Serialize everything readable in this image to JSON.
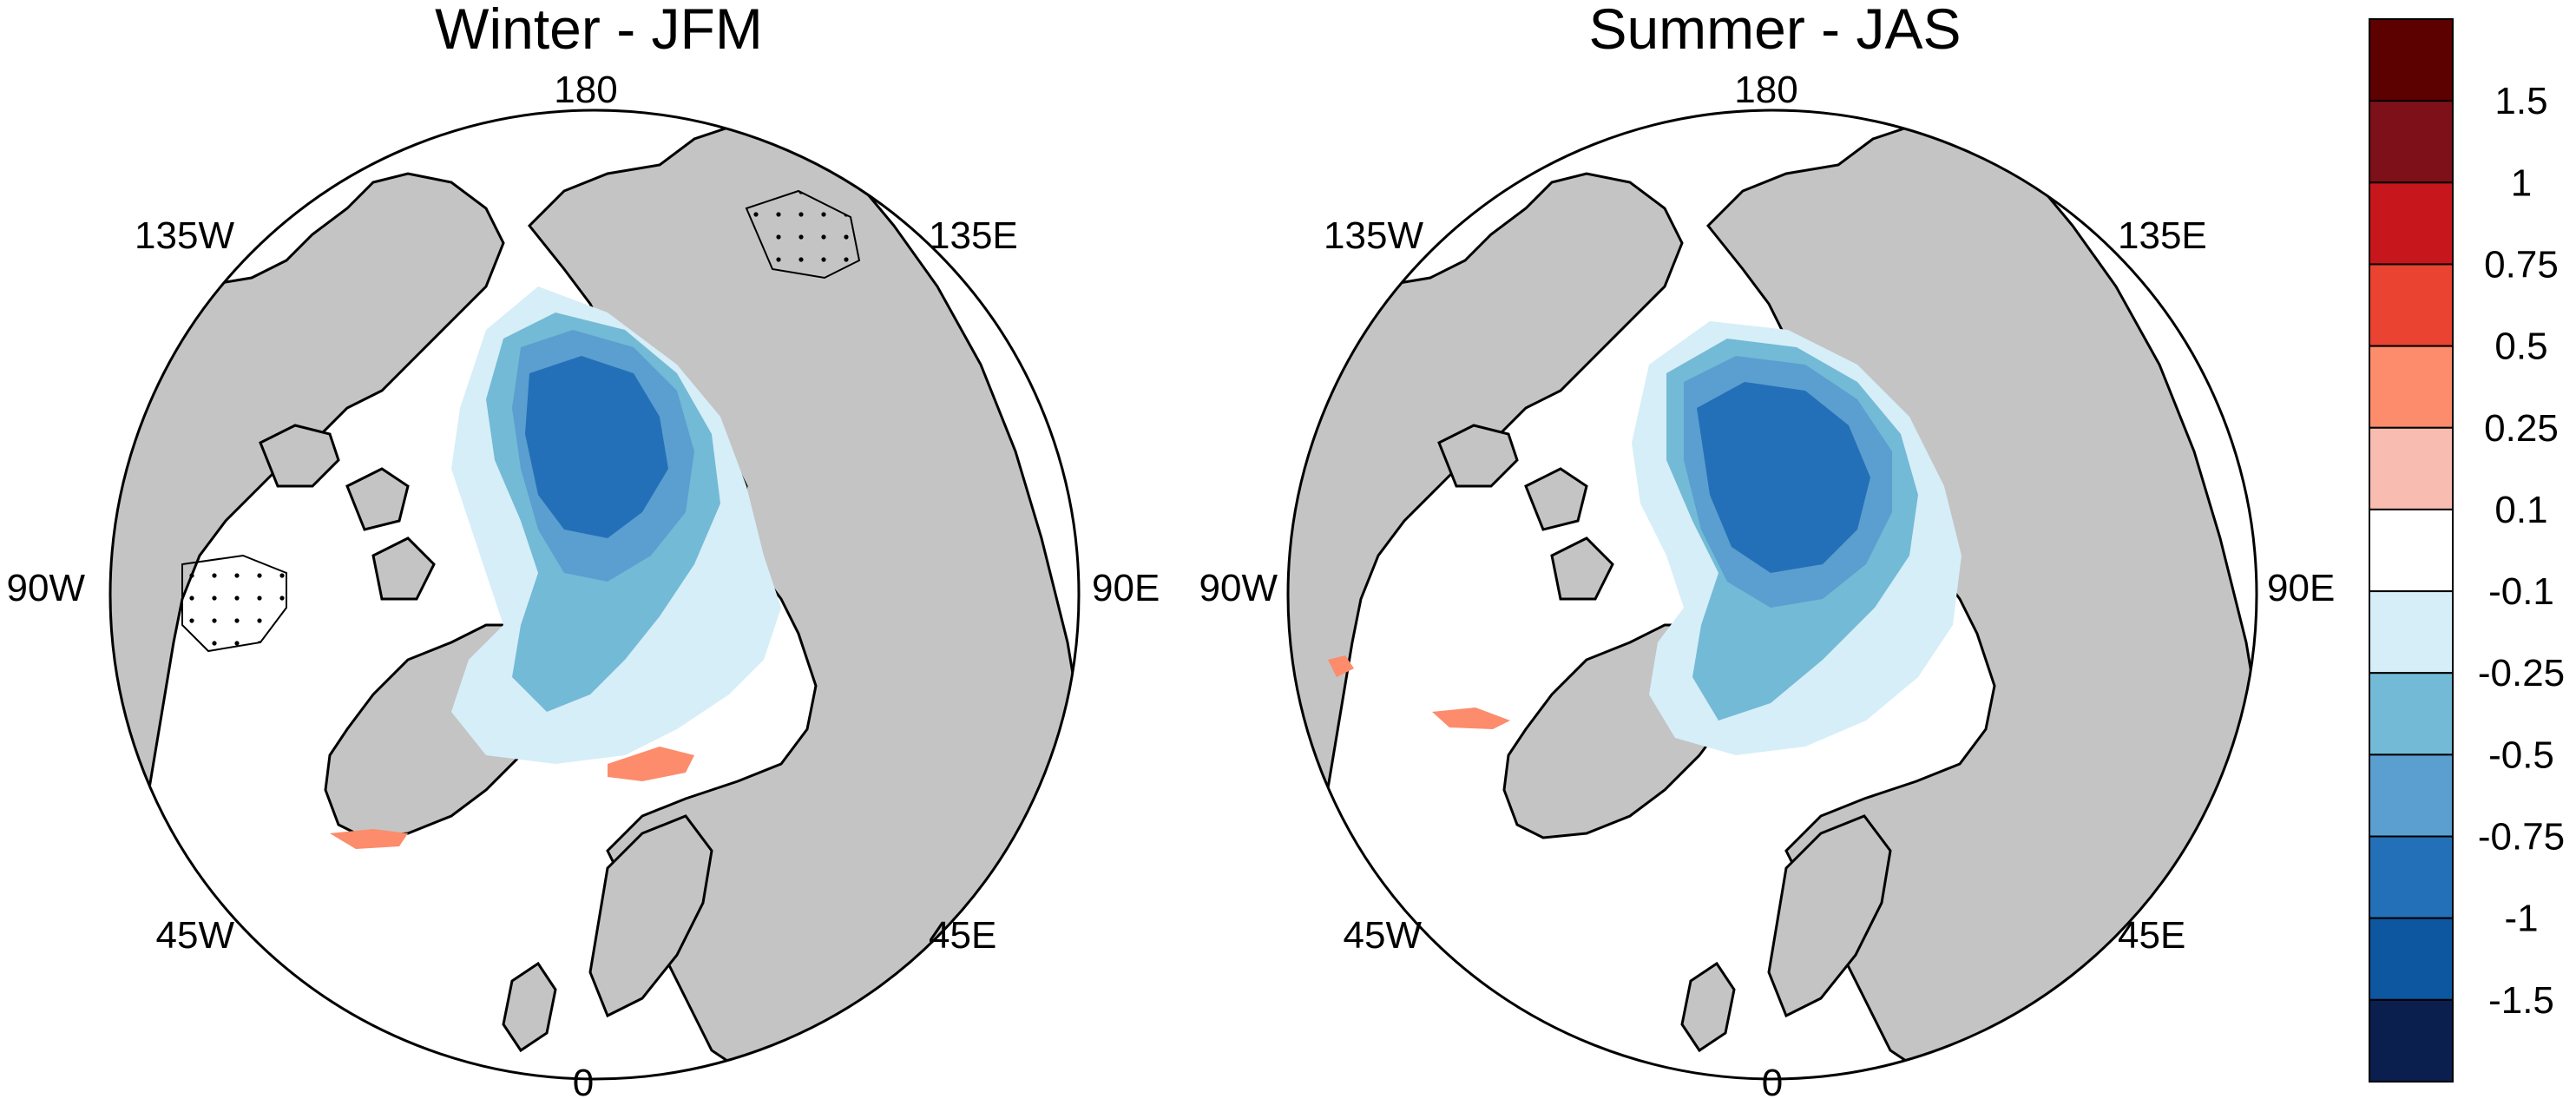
{
  "panels": [
    {
      "title": "Winter - JFM",
      "lon_labels": {
        "top": "180",
        "top_left": "135W",
        "top_right": "135E",
        "left": "90W",
        "right": "90E",
        "bottom_left": "45W",
        "bottom_right": "45E",
        "bottom": "0"
      }
    },
    {
      "title": "Summer - JAS",
      "lon_labels": {
        "top": "180",
        "top_left": "135W",
        "top_right": "135E",
        "left": "90W",
        "right": "90E",
        "bottom_left": "45W",
        "bottom_right": "45E",
        "bottom": "0"
      }
    }
  ],
  "colorbar": {
    "labels": [
      "1.5",
      "1",
      "0.75",
      "0.5",
      "0.25",
      "0.1",
      "-0.1",
      "-0.25",
      "-0.5",
      "-0.75",
      "-1",
      "-1.5"
    ],
    "colors": [
      "#5c0000",
      "#7d1018",
      "#c8161d",
      "#ea4331",
      "#fc8c6c",
      "#f8bdb0",
      "#ffffff",
      "#d6eef8",
      "#73bad6",
      "#5a9fd0",
      "#2470b8",
      "#0d56a0",
      "#0a1f4d"
    ]
  },
  "map_colors": {
    "land": "#c4c4c4",
    "ocean_neutral": "#ffffff",
    "class_-0.1": "#d6eef8",
    "class_-0.25": "#73bad6",
    "class_-0.5": "#5a9fd0",
    "class_-0.75": "#2470b8",
    "class_-1": "#0d56a0",
    "class_0.1": "#f8bdb0",
    "class_0.25": "#fc8c6c"
  }
}
